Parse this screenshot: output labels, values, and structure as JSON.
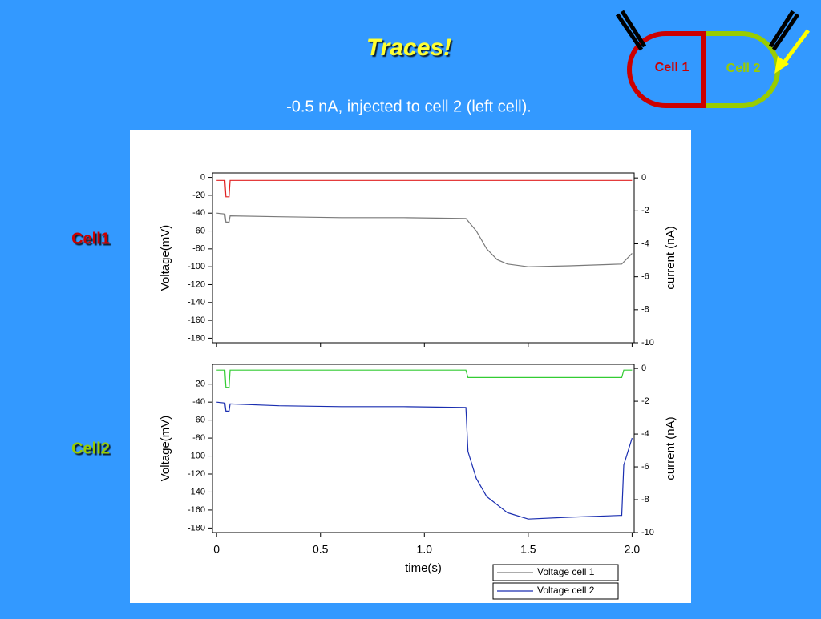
{
  "slide": {
    "title": "Traces!",
    "subtitle": "-0.5 nA, injected to cell 2 (left cell).",
    "row_labels": [
      "Cell1",
      "Cell2"
    ],
    "diagram": [
      "Cell 1",
      "Cell 2"
    ]
  },
  "chart_data": [
    {
      "type": "line",
      "ylabel": "Voltage(mV)",
      "y2label": "current (nA)",
      "x": [
        0,
        0.04,
        0.045,
        0.06,
        0.065,
        0.3,
        0.6,
        0.9,
        1.2,
        1.25,
        1.3,
        1.35,
        1.4,
        1.5,
        1.7,
        1.95,
        2.0
      ],
      "series": [
        {
          "color": "#e02020",
          "axis": "y2",
          "values": [
            -0.15,
            -0.15,
            -1.15,
            -1.15,
            -0.15,
            -0.15,
            -0.15,
            -0.15,
            -0.15,
            -0.15,
            -0.15,
            -0.15,
            -0.15,
            -0.15,
            -0.15,
            -0.15,
            -0.15
          ]
        },
        {
          "name": "Voltage cell 1",
          "color": "#7a7a7a",
          "values": [
            -40,
            -41,
            -50,
            -50,
            -43,
            -44,
            -45,
            -45,
            -46,
            -60,
            -80,
            -92,
            -97,
            -100,
            -99,
            -97,
            -85
          ]
        }
      ],
      "xlim": [
        -0.02,
        2.01
      ],
      "xticks": [
        0,
        0.5,
        {
          "value": 1,
          "label": "1.0"
        },
        1.5,
        {
          "value": 2,
          "label": "2.0"
        }
      ],
      "ylim": [
        -185,
        5
      ],
      "yticks": [
        0,
        -20,
        -40,
        -60,
        -80,
        -100,
        -120,
        -140,
        -160,
        -180
      ],
      "y2lim": [
        -10,
        0.3
      ],
      "y2ticks": [
        0,
        -2,
        -4,
        -6,
        -8,
        -10
      ]
    },
    {
      "type": "line",
      "ylabel": "Voltage(mV)",
      "y2label": "current (nA)",
      "xlabel": "time(s)",
      "x": [
        0,
        0.04,
        0.045,
        0.06,
        0.065,
        0.3,
        0.6,
        0.9,
        1.2,
        1.21,
        1.25,
        1.3,
        1.4,
        1.5,
        1.7,
        1.94,
        1.95,
        1.96,
        2.0
      ],
      "series": [
        {
          "color": "#33cc33",
          "axis": "y2",
          "values": [
            -0.1,
            -0.1,
            -1.15,
            -1.15,
            -0.1,
            -0.1,
            -0.1,
            -0.1,
            -0.1,
            -0.55,
            -0.55,
            -0.55,
            -0.55,
            -0.55,
            -0.55,
            -0.55,
            -0.55,
            -0.1,
            -0.1
          ]
        },
        {
          "name": "Voltage cell 2",
          "color": "#1a2eb0",
          "values": [
            -40,
            -41,
            -50,
            -50,
            -42,
            -44,
            -45,
            -45,
            -46,
            -95,
            -125,
            -145,
            -163,
            -170,
            -168,
            -166,
            -166,
            -110,
            -80
          ]
        }
      ],
      "xlim": [
        -0.02,
        2.01
      ],
      "xticks": [
        0,
        0.5,
        {
          "value": 1,
          "label": "1.0"
        },
        1.5,
        {
          "value": 2,
          "label": "2.0"
        }
      ],
      "ylim": [
        -185,
        2
      ],
      "yticks": [
        -20,
        -40,
        -60,
        -80,
        -100,
        -120,
        -140,
        -160,
        -180
      ],
      "y2lim": [
        -10,
        0.25
      ],
      "y2ticks": [
        0,
        -2,
        -4,
        -6,
        -8,
        -10
      ]
    }
  ]
}
